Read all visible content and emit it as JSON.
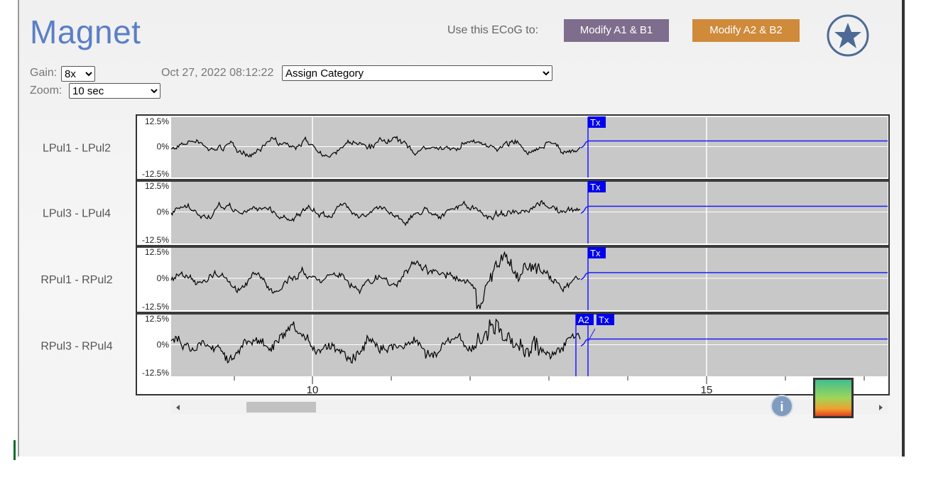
{
  "header": {
    "title": "Magnet",
    "use_label": "Use this ECoG to:",
    "buttons": [
      "Modify A1 & B1",
      "Modify A2 & B2"
    ]
  },
  "controls": {
    "gain_label": "Gain:",
    "gain": "8x",
    "date": "Oct 27, 2022 08:12:22",
    "category": "Assign Category",
    "zoom_label": "Zoom:",
    "zoom": "10 sec"
  },
  "amplitude_ticks": [
    "12.5%",
    "0%",
    "-12.5%"
  ],
  "time_ticks": [
    "10",
    "15"
  ],
  "channels": [
    {
      "label": "LPul1 - LPul2",
      "markers": [
        "Tx"
      ]
    },
    {
      "label": "LPul3 - LPul4",
      "markers": [
        "Tx"
      ]
    },
    {
      "label": "RPul1 - RPul2",
      "markers": [
        "Tx"
      ]
    },
    {
      "label": "RPul3 - RPul4",
      "markers": [
        "A2",
        "Tx"
      ]
    }
  ],
  "info_icon": "i"
}
